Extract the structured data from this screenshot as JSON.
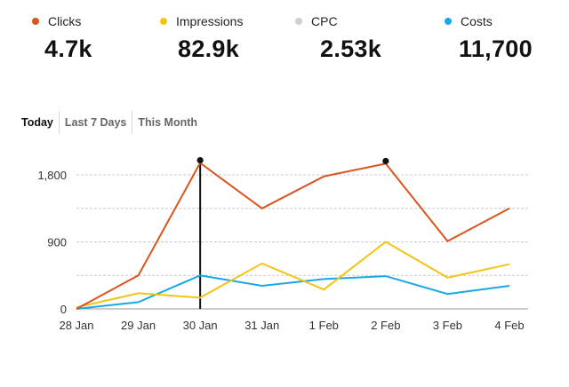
{
  "kpis": [
    {
      "label": "Clicks",
      "value": "4.7k",
      "color": "#d9541e"
    },
    {
      "label": "Impressions",
      "value": "82.9k",
      "color": "#f2c514"
    },
    {
      "label": "CPC",
      "value": "2.53k",
      "color": "#cfcfcf"
    },
    {
      "label": "Costs",
      "value": "11,700",
      "color": "#19a7e6"
    }
  ],
  "tabs": {
    "today": "Today",
    "last7": "Last 7 Days",
    "month": "This Month",
    "active": "today"
  },
  "chart_data": {
    "type": "line",
    "categories": [
      "28 Jan",
      "29 Jan",
      "30 Jan",
      "31 Jan",
      "1 Feb",
      "2 Feb",
      "3 Feb",
      "4 Feb"
    ],
    "series": [
      {
        "name": "Clicks",
        "color": "#d9541e",
        "values": [
          0,
          450,
          1960,
          1350,
          1780,
          1950,
          910,
          1350
        ]
      },
      {
        "name": "Impressions",
        "color": "#f2c514",
        "values": [
          20,
          210,
          150,
          610,
          260,
          900,
          420,
          600
        ]
      },
      {
        "name": "Costs",
        "color": "#19a7e6",
        "values": [
          0,
          90,
          450,
          310,
          400,
          440,
          200,
          310
        ]
      }
    ],
    "y_ticks": [
      "0",
      "900",
      "1,800"
    ],
    "y_tick_values": [
      0,
      900,
      1800
    ],
    "ylim": [
      0,
      1800
    ],
    "grid": true,
    "highlight_categories": [
      "30 Jan",
      "2 Feb"
    ],
    "cursor_category": "30 Jan"
  }
}
